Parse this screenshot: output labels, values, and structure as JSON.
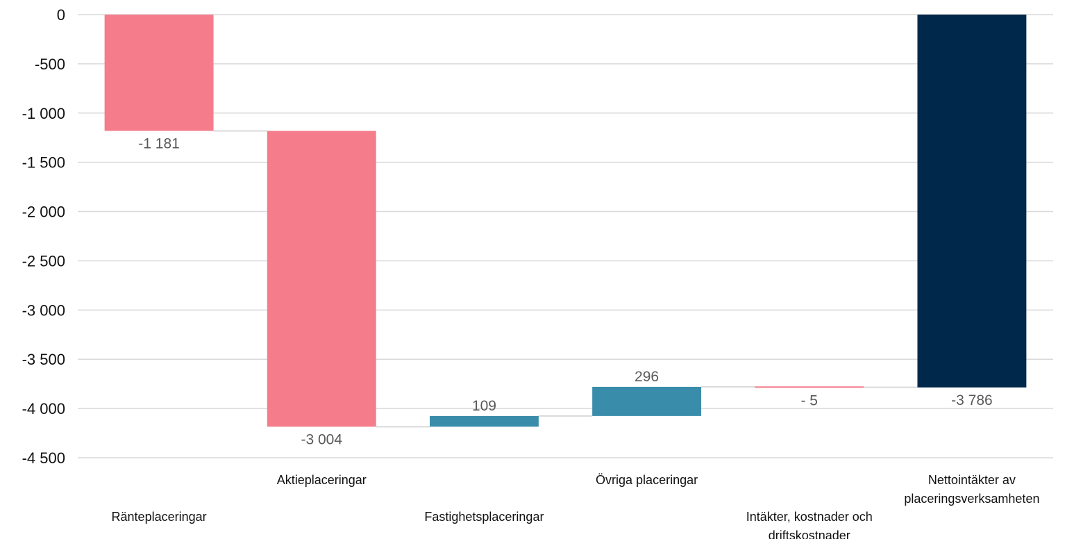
{
  "chart_data": {
    "type": "bar",
    "subtype": "waterfall",
    "title": "",
    "xlabel": "",
    "ylabel": "",
    "ylim": [
      -4500,
      0
    ],
    "yticks": [
      0,
      -500,
      -1000,
      -1500,
      -2000,
      -2500,
      -3000,
      -3500,
      -4000,
      -4500
    ],
    "ytick_labels": [
      "0",
      "-500",
      "-1 000",
      "-1 500",
      "-2 000",
      "-2 500",
      "-3 000",
      "-3 500",
      "-4 000",
      "-4 500"
    ],
    "grid": true,
    "legend": "none",
    "categories": [
      [
        "Ränteplaceringar"
      ],
      [
        "Aktieplaceringar"
      ],
      [
        "Fastighetsplaceringar"
      ],
      [
        "Övriga placeringar"
      ],
      [
        "Intäkter, kostnader och",
        "driftskostnader"
      ],
      [
        "Nettointäkter av",
        "placeringsverksamheten"
      ]
    ],
    "values": [
      -1181,
      -3004,
      109,
      296,
      -5,
      -3786
    ],
    "value_labels": [
      "-1 181",
      "-3 004",
      "109",
      "296",
      "- 5",
      "-3 786"
    ],
    "bar_roles": [
      "delta",
      "delta",
      "delta",
      "delta",
      "delta",
      "total"
    ],
    "colors": {
      "negative": "#f47c8b",
      "positive": "#3a8daa",
      "total": "#00284a",
      "grid": "#d9d9d9",
      "connector": "#d9d9d9"
    }
  }
}
